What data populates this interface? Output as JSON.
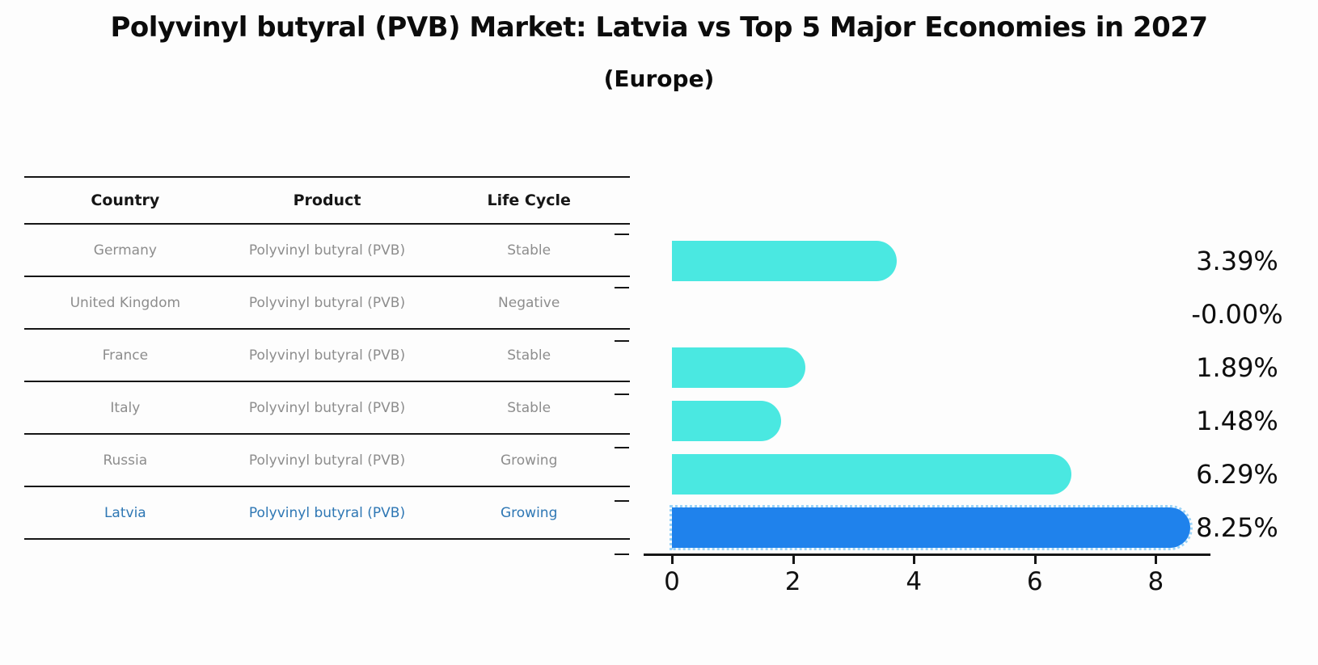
{
  "page": {
    "background": "#fdfdfd",
    "title": "Polyvinyl butyral (PVB) Market: Latvia vs Top 5 Major Economies in 2027",
    "subtitle": "(Europe)"
  },
  "table": {
    "headers": [
      "Country",
      "Product",
      "Life Cycle"
    ],
    "rows": [
      {
        "country": "Germany",
        "product": "Polyvinyl butyral (PVB)",
        "life_cycle": "Stable",
        "highlight": false
      },
      {
        "country": "United Kingdom",
        "product": "Polyvinyl butyral (PVB)",
        "life_cycle": "Negative",
        "highlight": false
      },
      {
        "country": "France",
        "product": "Polyvinyl butyral (PVB)",
        "life_cycle": "Stable",
        "highlight": false
      },
      {
        "country": "Italy",
        "product": "Polyvinyl butyral (PVB)",
        "life_cycle": "Stable",
        "highlight": false
      },
      {
        "country": "Russia",
        "product": "Polyvinyl butyral (PVB)",
        "life_cycle": "Growing",
        "highlight": false
      },
      {
        "country": "Latvia",
        "product": "Polyvinyl butyral (PVB)",
        "life_cycle": "Growing",
        "highlight": true
      }
    ],
    "colors": {
      "header_text": "#161616",
      "body_text": "#8d8d8d",
      "highlight_text": "#2e77b4",
      "line": "#161616"
    }
  },
  "chart_data": {
    "type": "bar",
    "orientation": "horizontal",
    "title": "Polyvinyl butyral (PVB) Market: Latvia vs Top 5 Major Economies in 2027",
    "subtitle": "(Europe)",
    "categories": [
      "Germany",
      "United Kingdom",
      "France",
      "Italy",
      "Russia",
      "Latvia"
    ],
    "values": [
      3.39,
      -0.0,
      1.89,
      1.48,
      6.29,
      8.25
    ],
    "value_labels": [
      "3.39%",
      "-0.00%",
      "1.89%",
      "1.48%",
      "6.29%",
      "8.25%"
    ],
    "x_ticks": [
      0,
      2,
      4,
      6,
      8
    ],
    "xlim": [
      -0.4,
      8.7
    ],
    "grid": false,
    "legend": false,
    "highlight_index": 5,
    "colors": {
      "bar": "#4AE8E1",
      "highlight_bar": "#1F82EC",
      "highlight_border": "#9bd3f7",
      "axis": "#161616",
      "label_text": "#0e0e0e"
    }
  }
}
